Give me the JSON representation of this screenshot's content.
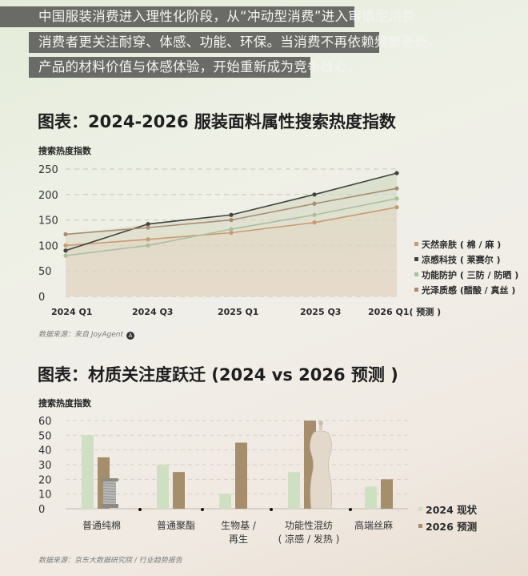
{
  "intro": {
    "lines": [
      "中国服装消费进入理性化阶段，从“冲动型消费”进入审慎型消费",
      "消费者更关注耐穿、体感、功能、环保。当消费不再依赖频繁更新，",
      "产品的材料价值与体感体验，开始重新成为竞争核心。"
    ]
  },
  "chart1": {
    "title": "图表：2024-2026 服装面料属性搜索热度指数",
    "ylabel": "搜索热度指数",
    "source": "数据来源：来自 JoyAgent",
    "source_icon": "joyagent-logo-icon"
  },
  "chart2": {
    "title": "图表：材质关注度跃迁 (2024 vs 2026 预测 )",
    "ylabel": "搜索热度指数",
    "source": "数据来源：京东大数据研究院 / 行业趋势报告"
  },
  "chart_data": [
    {
      "type": "line",
      "title": "图表：2024-2026 服装面料属性搜索热度指数",
      "xlabel": "",
      "ylabel": "搜索热度指数",
      "ylim": [
        0,
        250
      ],
      "yticks": [
        0,
        50,
        100,
        150,
        200,
        250
      ],
      "grid": true,
      "legend_position": "right",
      "categories": [
        "2024 Q1",
        "2024 Q3",
        "2025 Q1",
        "2025 Q3",
        "2026 Q1( 预测 )"
      ],
      "series": [
        {
          "name": "天然亲肤 ( 棉 / 麻 )",
          "color": "#c99a70",
          "values": [
            100,
            112,
            125,
            145,
            175
          ]
        },
        {
          "name": "凉感科技 ( 莱赛尔 )",
          "color": "#3f453f",
          "values": [
            90,
            142,
            160,
            200,
            242
          ]
        },
        {
          "name": "功能防护 ( 三防 / 防晒 )",
          "color": "#a8bfa0",
          "values": [
            80,
            100,
            132,
            160,
            192
          ]
        },
        {
          "name": "光泽质感 (醋酸 / 真丝 )",
          "color": "#a88c72",
          "values": [
            122,
            135,
            150,
            182,
            212
          ]
        }
      ]
    },
    {
      "type": "bar",
      "title": "图表：材质关注度跃迁 (2024 vs 2026 预测 )",
      "xlabel": "",
      "ylabel": "搜索热度指数",
      "ylim": [
        0,
        60
      ],
      "yticks": [
        0,
        10,
        20,
        30,
        40,
        50,
        60
      ],
      "grid": true,
      "legend_position": "right-bottom",
      "categories": [
        "普通纯棉",
        "普通聚酯",
        "生物基 / 再生",
        "功能性混纺 ( 凉感 / 发热 )",
        "高端丝麻"
      ],
      "category_lines": [
        [
          "普通纯棉"
        ],
        [
          "普通聚酯"
        ],
        [
          "生物基 /",
          "再生"
        ],
        [
          "功能性混纺",
          "( 凉感 / 发热 )"
        ],
        [
          "高端丝麻"
        ]
      ],
      "series": [
        {
          "name": "2024 现状",
          "color": "#cfe0c2",
          "values": [
            50,
            30,
            10,
            25,
            15
          ]
        },
        {
          "name": "2026 预测",
          "color": "#a68d6b",
          "values": [
            35,
            25,
            45,
            60,
            20
          ]
        }
      ]
    }
  ]
}
